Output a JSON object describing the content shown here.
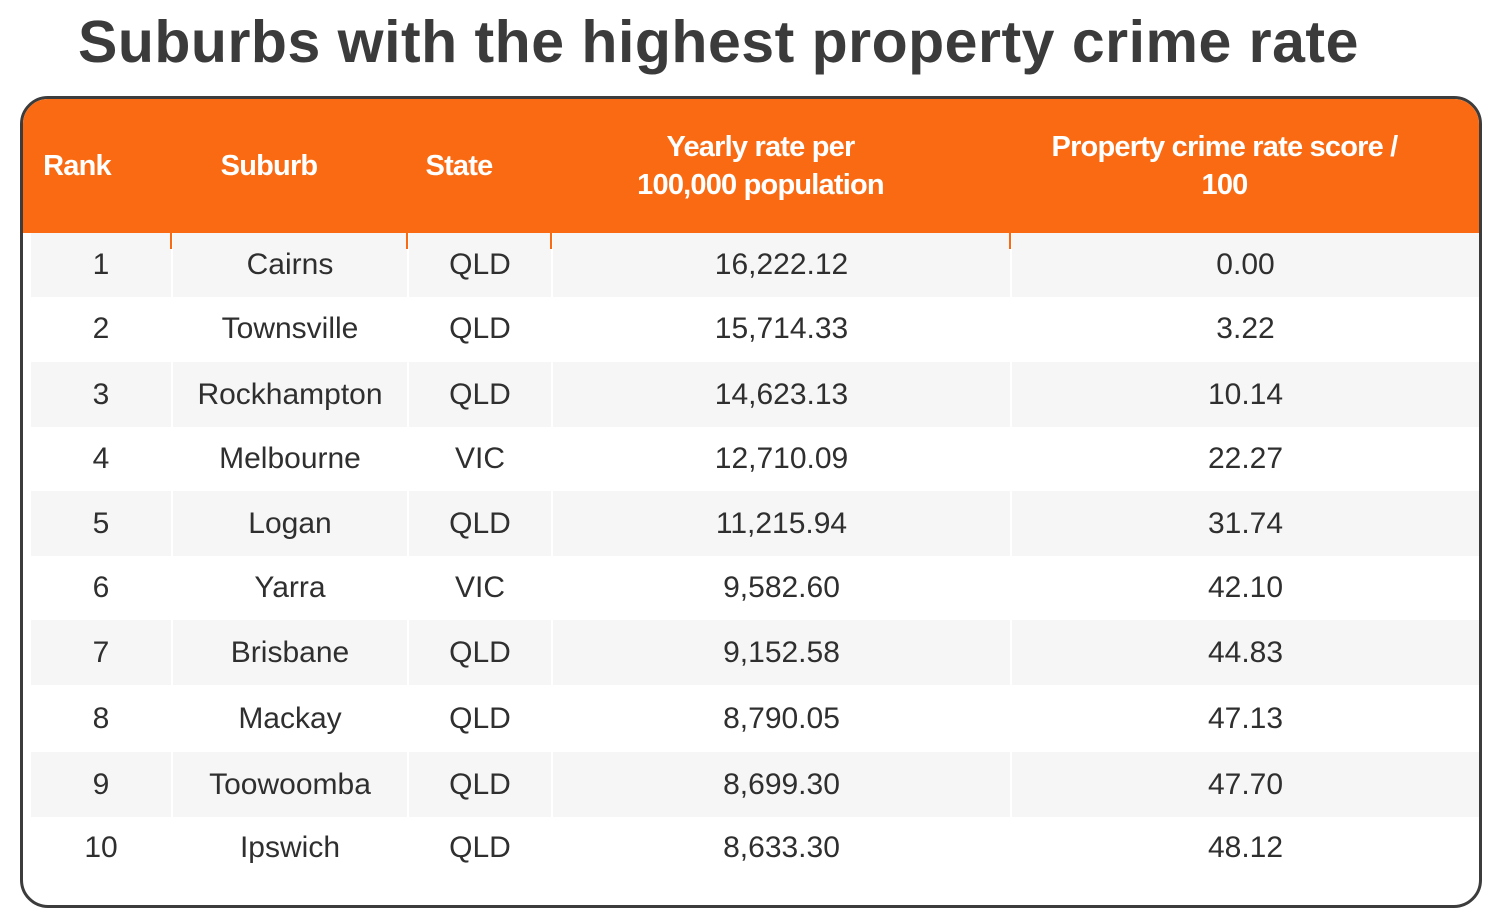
{
  "title": "Suburbs with the highest property crime rate",
  "colors": {
    "header_bg": "#f96a12",
    "header_text": "#ffffff",
    "row_alt": "#f6f6f6"
  },
  "chart_data": {
    "type": "table",
    "title": "Suburbs with the highest property crime rate",
    "columns": [
      "Rank",
      "Suburb",
      "State",
      "Yearly rate per\n100,000 population",
      "Property crime rate score /\n100"
    ],
    "rows": [
      [
        "1",
        "Cairns",
        "QLD",
        "16,222.12",
        "0.00"
      ],
      [
        "2",
        "Townsville",
        "QLD",
        "15,714.33",
        "3.22"
      ],
      [
        "3",
        "Rockhampton",
        "QLD",
        "14,623.13",
        "10.14"
      ],
      [
        "4",
        "Melbourne",
        "VIC",
        "12,710.09",
        "22.27"
      ],
      [
        "5",
        "Logan",
        "QLD",
        "11,215.94",
        "31.74"
      ],
      [
        "6",
        "Yarra",
        "VIC",
        "9,582.60",
        "42.10"
      ],
      [
        "7",
        "Brisbane",
        "QLD",
        "9,152.58",
        "44.83"
      ],
      [
        "8",
        "Mackay",
        "QLD",
        "8,790.05",
        "47.13"
      ],
      [
        "9",
        "Toowoomba",
        "QLD",
        "8,699.30",
        "47.70"
      ],
      [
        "10",
        "Ipswich",
        "QLD",
        "8,633.30",
        "48.12"
      ]
    ]
  }
}
